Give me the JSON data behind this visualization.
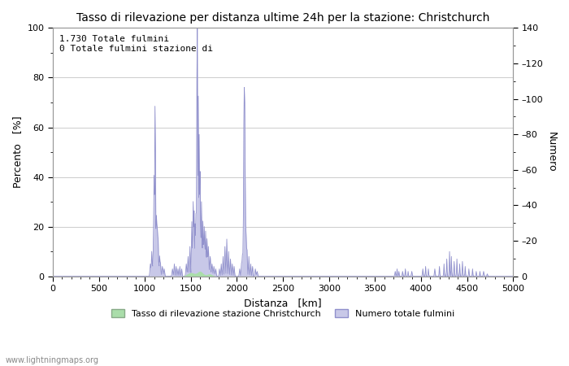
{
  "title": "Tasso di rilevazione per distanza ultime 24h per la stazione: Christchurch",
  "xlabel": "Distanza   [km]",
  "ylabel_left": "Percento   [%]",
  "ylabel_right": "Numero",
  "annotation_line1": "1.730 Totale fulmini",
  "annotation_line2": "0 Totale fulmini stazione di",
  "legend_label1": "Tasso di rilevazione stazione Christchurch",
  "legend_label2": "Numero totale fulmini",
  "legend_color1": "#aaddaa",
  "legend_color2": "#c8c8e8",
  "line_color": "#9090cc",
  "fill_color_blue": "#c8c8e8",
  "fill_color_green": "#aaddaa",
  "xlim": [
    0,
    5000
  ],
  "ylim_left": [
    0,
    100
  ],
  "ylim_right": [
    0,
    140
  ],
  "background_color": "#ffffff",
  "watermark": "www.lightningmaps.org",
  "title_fontsize": 10,
  "axis_fontsize": 9,
  "tick_fontsize": 8
}
